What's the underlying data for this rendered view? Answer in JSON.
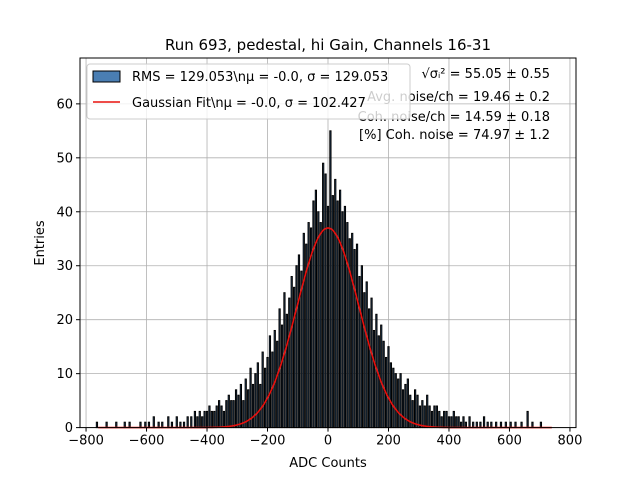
{
  "chart_data": {
    "type": "bar",
    "title": "Run 693, pedestal, hi Gain, Channels 16-31",
    "xlabel": "ADC Counts",
    "ylabel": "Entries",
    "xlim": [
      -820,
      820
    ],
    "ylim": [
      0,
      68.5
    ],
    "xticks": [
      -800,
      -600,
      -400,
      -200,
      0,
      200,
      400,
      600,
      800
    ],
    "yticks": [
      0,
      10,
      20,
      30,
      40,
      50,
      60
    ],
    "grid": true,
    "legend_position": "top-left",
    "histogram": {
      "name": "RMS = 129.053\\nμ = -0.0, σ = 129.053",
      "color": "#4a7eb3",
      "bin_width": 4,
      "bin_centers": [
        -764,
        -732,
        -700,
        -672,
        -656,
        -620,
        -604,
        -592,
        -576,
        -560,
        -548,
        -528,
        -516,
        -500,
        -488,
        -476,
        -464,
        -452,
        -440,
        -432,
        -424,
        -416,
        -408,
        -400,
        -392,
        -384,
        -376,
        -368,
        -360,
        -352,
        -344,
        -336,
        -328,
        -320,
        -312,
        -304,
        -296,
        -288,
        -280,
        -272,
        -264,
        -256,
        -248,
        -240,
        -232,
        -224,
        -216,
        -208,
        -200,
        -192,
        -184,
        -176,
        -168,
        -160,
        -152,
        -144,
        -136,
        -128,
        -120,
        -112,
        -104,
        -96,
        -88,
        -80,
        -72,
        -64,
        -56,
        -48,
        -40,
        -32,
        -24,
        -16,
        -8,
        0,
        8,
        16,
        24,
        32,
        40,
        48,
        56,
        64,
        72,
        80,
        88,
        96,
        104,
        112,
        120,
        128,
        136,
        144,
        152,
        160,
        168,
        176,
        184,
        192,
        200,
        208,
        216,
        224,
        232,
        240,
        248,
        256,
        264,
        272,
        280,
        288,
        296,
        304,
        312,
        320,
        328,
        336,
        344,
        352,
        360,
        368,
        376,
        384,
        392,
        400,
        408,
        416,
        424,
        432,
        440,
        448,
        456,
        468,
        480,
        492,
        504,
        516,
        528,
        540,
        556,
        572,
        588,
        604,
        620,
        640,
        660,
        676,
        704,
        716,
        736
      ],
      "counts": [
        1,
        1,
        1,
        1,
        1,
        1,
        1,
        1,
        2,
        1,
        1,
        2,
        1,
        2,
        1,
        1,
        2,
        2,
        3,
        2,
        3,
        2,
        3,
        3,
        4,
        3,
        3,
        4,
        5,
        4,
        3,
        5,
        6,
        5,
        5,
        7,
        6,
        8,
        5,
        9,
        7,
        11,
        8,
        10,
        12,
        8,
        14,
        11,
        13,
        17,
        14,
        18,
        16,
        22,
        19,
        25,
        21,
        24,
        28,
        26,
        30,
        32,
        29,
        36,
        34,
        38,
        37,
        42,
        44,
        40,
        38,
        49,
        47,
        41,
        55,
        43,
        46,
        42,
        44,
        40,
        41,
        38,
        35,
        36,
        33,
        34,
        28,
        30,
        25,
        27,
        22,
        24,
        18,
        21,
        17,
        19,
        16,
        13,
        15,
        12,
        11,
        10,
        9,
        10,
        7,
        8,
        9,
        6,
        5,
        7,
        6,
        4,
        5,
        4,
        6,
        4,
        3,
        4,
        4,
        3,
        2,
        3,
        3,
        2,
        2,
        3,
        2,
        2,
        1,
        2,
        1,
        2,
        1,
        1,
        1,
        2,
        1,
        1,
        1,
        1,
        1,
        1,
        1,
        1,
        3,
        1,
        1
      ]
    },
    "fit": {
      "name": "Gaussian Fit\\nμ = -0.0, σ = 102.427",
      "color": "#e8100d",
      "mu": 0.0,
      "sigma": 102.427,
      "amplitude": 37.0,
      "x_range": [
        -760,
        740
      ]
    },
    "annotations": [
      "√σᵢ² = 55.05 ± 0.55",
      "Avg. noise/ch = 19.46 ± 0.2",
      "Coh. noise/ch = 14.59 ± 0.18",
      "[%] Coh. noise = 74.97 ± 1.2"
    ]
  }
}
